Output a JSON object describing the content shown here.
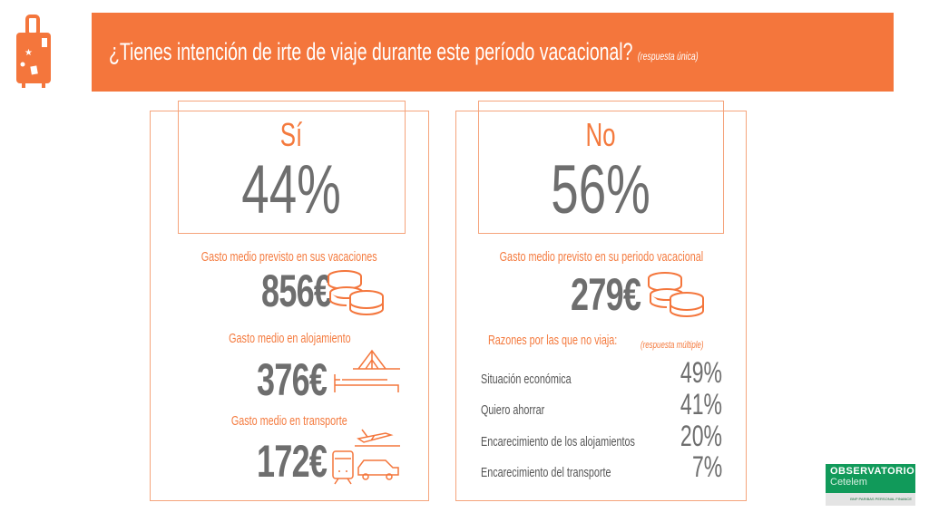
{
  "header": {
    "question": "¿Tienes intención de irte de viaje durante este período vacacional?",
    "note": "(respuesta única)",
    "icon": "suitcase-icon"
  },
  "yes": {
    "label": "Sí",
    "value": "44%",
    "items": [
      {
        "label": "Gasto medio previsto en sus vacaciones",
        "value": "856€",
        "icon": "coins-icon"
      },
      {
        "label": "Gasto medio en alojamiento",
        "value": "376€",
        "icon": "bed-tent-icon"
      },
      {
        "label": "Gasto medio en transporte",
        "value": "172€",
        "icon": "transport-icon"
      }
    ]
  },
  "no": {
    "label": "No",
    "value": "56%",
    "spend_label": "Gasto medio previsto en su periodo vacacional",
    "spend_value": "279€",
    "reasons_title": "Razones por las que no viaja:",
    "reasons_note": "(respuesta múltiple)",
    "reasons": [
      {
        "label": "Situación económica",
        "value": "49%"
      },
      {
        "label": "Quiero ahorrar",
        "value": "41%"
      },
      {
        "label": "Encarecimiento de los alojamientos",
        "value": "20%"
      },
      {
        "label": "Encarecimiento del transporte",
        "value": "7%"
      }
    ]
  },
  "logo": {
    "line1": "OBSERVATORIO",
    "line2": "Cetelem",
    "sub": "BNP PARIBAS PERSONAL FINANCE"
  },
  "colors": {
    "accent": "#f4763c",
    "text": "#6e6e6e",
    "logo": "#119a5a"
  }
}
